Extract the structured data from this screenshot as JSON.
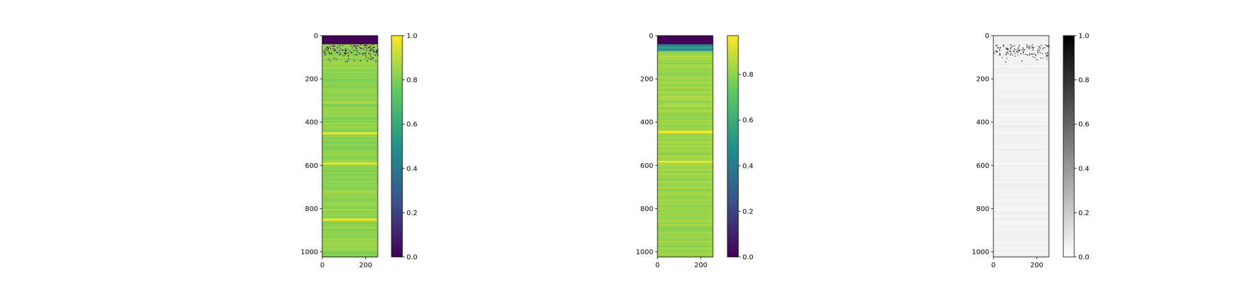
{
  "chart_data": [
    {
      "type": "heatmap",
      "title": "",
      "xlabel": "",
      "ylabel": "",
      "colormap": "viridis",
      "colormap_stops": [
        "#440154",
        "#3b528b",
        "#21918c",
        "#5ec962",
        "#fde725"
      ],
      "xlim": [
        0,
        256
      ],
      "ylim": [
        1024,
        0
      ],
      "xticks": [
        0,
        200
      ],
      "yticks": [
        0,
        200,
        400,
        600,
        800,
        1000
      ],
      "colorbar_range": [
        0,
        1.0
      ],
      "colorbar_ticks": [
        "0.0",
        "0.2",
        "0.4",
        "0.6",
        "0.8",
        "1.0"
      ],
      "values_summary": {
        "top_band_rows": [
          0,
          40
        ],
        "top_band_value": 0.0,
        "body_typical_value": 0.83,
        "bright_bands_rows": [
          450,
          590,
          850
        ],
        "bright_band_value": 1.0,
        "noisy_rows": [
          40,
          120
        ]
      }
    },
    {
      "type": "heatmap",
      "title": "",
      "xlabel": "",
      "ylabel": "",
      "colormap": "viridis",
      "colormap_stops": [
        "#440154",
        "#3b528b",
        "#21918c",
        "#5ec962",
        "#fde725"
      ],
      "xlim": [
        0,
        256
      ],
      "ylim": [
        1024,
        0
      ],
      "xticks": [
        0,
        200
      ],
      "yticks": [
        0,
        200,
        400,
        600,
        800,
        1000
      ],
      "colorbar_range": [
        0,
        0.97
      ],
      "colorbar_ticks": [
        "0.0",
        "0.2",
        "0.4",
        "0.6",
        "0.8"
      ],
      "values_summary": {
        "top_band_rows": [
          0,
          38
        ],
        "top_band_value": 0.0,
        "transition_rows": [
          38,
          70
        ],
        "transition_value": 0.5,
        "body_typical_value": 0.82,
        "bright_bands_rows": [
          443,
          582
        ],
        "bright_band_value": 0.97
      }
    },
    {
      "type": "heatmap",
      "title": "",
      "xlabel": "",
      "ylabel": "",
      "colormap": "gray_r",
      "colormap_stops": [
        "#ffffff",
        "#000000"
      ],
      "xlim": [
        0,
        256
      ],
      "ylim": [
        1024,
        0
      ],
      "xticks": [
        0,
        200
      ],
      "yticks": [
        0,
        200,
        400,
        600,
        800,
        1000
      ],
      "colorbar_range": [
        0,
        1.0
      ],
      "colorbar_ticks": [
        "0.0",
        "0.2",
        "0.4",
        "0.6",
        "0.8",
        "1.0"
      ],
      "values_summary": {
        "noisy_rows": [
          40,
          120
        ],
        "noisy_value": 0.9,
        "body_typical_value": 0.03,
        "faint_band_rows": [
          450,
          850
        ]
      }
    }
  ]
}
